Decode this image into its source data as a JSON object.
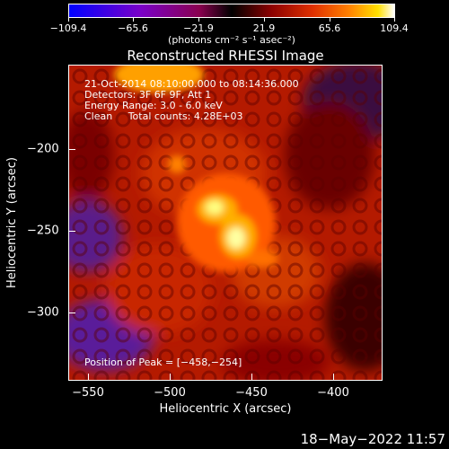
{
  "colorbar": {
    "labels": [
      "−109.4",
      "−65.6",
      "−21.9",
      "21.9",
      "65.6",
      "109.4"
    ],
    "units": "(photons cm⁻² s⁻¹ asec⁻²)"
  },
  "title": "Reconstructed RHESSI Image",
  "info": {
    "line1": "21-Oct-2014 08:10:00.000 to 08:14:36.000",
    "line2": "Detectors: 3F 6F 9F, Att 1",
    "line3": "Energy Range: 3.0 - 6.0 keV",
    "line4": "Clean     Total counts: 4.28E+03"
  },
  "peak": "Position of Peak = [−458,−254]",
  "axes": {
    "xlabel": "Heliocentric X (arcsec)",
    "ylabel": "Heliocentric Y (arcsec)",
    "xticks": [
      "−550",
      "−500",
      "−450",
      "−400"
    ],
    "yticks": [
      "−200",
      "−250",
      "−300"
    ]
  },
  "timestamp": "18−May−2022 11:57",
  "colors": {
    "peak": "#ffffa0",
    "background": "#000000"
  }
}
